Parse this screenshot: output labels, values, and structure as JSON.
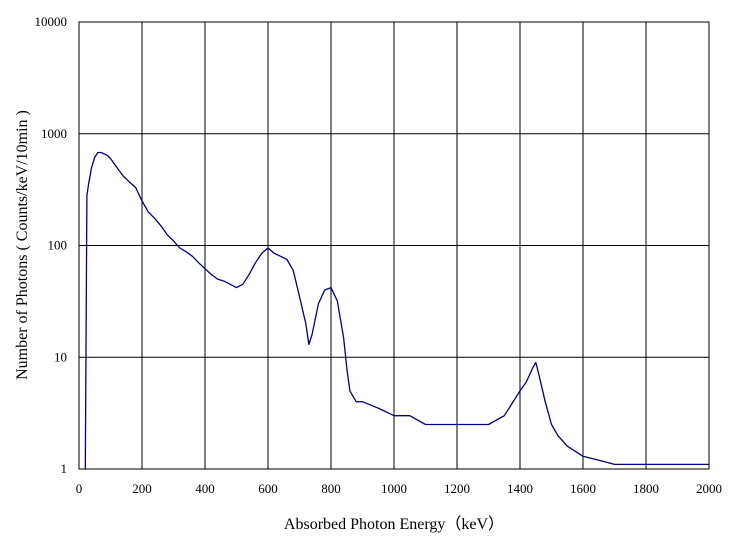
{
  "chart_data": {
    "type": "line",
    "title": "",
    "xlabel": "Absorbed Photon Energy（keV）",
    "ylabel": "Number of Photons ( Counts/keV/10min )",
    "xlim": [
      0,
      2000
    ],
    "ylim": [
      1,
      10000
    ],
    "yscale": "log",
    "grid": true,
    "legend": "none",
    "x_ticks": [
      "0",
      "200",
      "400",
      "600",
      "800",
      "1000",
      "1200",
      "1400",
      "1600",
      "1800",
      "2000"
    ],
    "y_ticks": [
      "1",
      "10",
      "100",
      "1000",
      "10000"
    ],
    "colors": {
      "series": "#000080",
      "grid": "#000000",
      "frame": "#000000"
    },
    "series": [
      {
        "x": [
          20,
          25,
          30,
          40,
          50,
          60,
          70,
          80,
          90,
          100,
          120,
          140,
          160,
          180,
          200,
          220,
          240,
          260,
          280,
          300,
          320,
          340,
          360,
          380,
          400,
          420,
          440,
          460,
          480,
          500,
          520,
          540,
          560,
          580,
          600,
          620,
          640,
          660,
          680,
          700,
          720,
          730,
          740,
          760,
          780,
          800,
          820,
          840,
          850,
          860,
          880,
          900,
          950,
          1000,
          1050,
          1100,
          1150,
          1200,
          1250,
          1300,
          1350,
          1400,
          1420,
          1440,
          1450,
          1460,
          1480,
          1500,
          1520,
          1550,
          1600,
          1650,
          1700,
          1750,
          1800,
          1850,
          1900,
          1950,
          2000
        ],
        "y": [
          1,
          280,
          350,
          500,
          620,
          680,
          680,
          660,
          640,
          600,
          500,
          420,
          370,
          330,
          250,
          200,
          175,
          150,
          125,
          110,
          95,
          88,
          80,
          70,
          62,
          55,
          50,
          48,
          45,
          42,
          45,
          55,
          70,
          85,
          95,
          85,
          80,
          75,
          60,
          35,
          20,
          13,
          16,
          30,
          40,
          42,
          32,
          15,
          8,
          5,
          4,
          4,
          3.5,
          3,
          3,
          2.5,
          2.5,
          2.5,
          2.5,
          2.5,
          3,
          5,
          6,
          8,
          9,
          7,
          4,
          2.5,
          2,
          1.6,
          1.3,
          1.2,
          1.1,
          1.1,
          1.1,
          1.1,
          1.1,
          1.1,
          1.1
        ]
      }
    ]
  }
}
